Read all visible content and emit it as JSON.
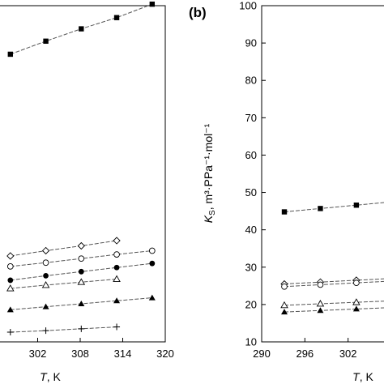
{
  "chart_data": [
    {
      "panel": "a",
      "type": "line",
      "xlabel_var": "T",
      "xlabel_unit": ", K",
      "xlim": [
        296,
        320
      ],
      "x_ticks": [
        "302",
        "308",
        "314",
        "320"
      ],
      "series": [
        {
          "marker": "filled-square",
          "x": [
            298.15,
            303.15,
            308.15,
            313.15,
            318.15
          ],
          "y": [
            87,
            90.5,
            93.8,
            96.8,
            100.4
          ]
        },
        {
          "marker": "open-diamond",
          "x": [
            298.15,
            303.15,
            308.15,
            313.15
          ],
          "y": [
            33,
            34.4,
            35.7,
            37.1
          ]
        },
        {
          "marker": "open-circle",
          "x": [
            298.15,
            303.15,
            308.15,
            313.15,
            318.15
          ],
          "y": [
            30.2,
            31.2,
            32.3,
            33.4,
            34.4
          ]
        },
        {
          "marker": "filled-circle",
          "x": [
            298.15,
            303.15,
            308.15,
            313.15,
            318.15
          ],
          "y": [
            26.5,
            27.7,
            28.8,
            29.9,
            31.0
          ]
        },
        {
          "marker": "open-triangle",
          "x": [
            298.15,
            303.15,
            308.15,
            313.15
          ],
          "y": [
            24.3,
            25.2,
            26.0,
            26.8
          ]
        },
        {
          "marker": "filled-triangle",
          "x": [
            298.15,
            303.15,
            308.15,
            313.15,
            318.15
          ],
          "y": [
            18.6,
            19.4,
            20.2,
            21.0,
            21.8
          ]
        },
        {
          "marker": "plus",
          "x": [
            298.15,
            303.15,
            308.15,
            313.15
          ],
          "y": [
            12.6,
            13.0,
            13.5,
            14.0
          ]
        }
      ]
    },
    {
      "panel": "b",
      "type": "line",
      "tag": "(b)",
      "xlabel_var": "T",
      "xlabel_unit": ", K",
      "ylabel_var": "K",
      "ylabel_sub": "S",
      "ylabel_rest": ", m³·PPa⁻¹·mol⁻¹",
      "xlim": [
        290,
        308
      ],
      "ylim": [
        10,
        100
      ],
      "x_ticks": [
        "290",
        "296",
        "302",
        "3"
      ],
      "y_ticks": [
        "10",
        "20",
        "30",
        "40",
        "50",
        "60",
        "70",
        "80",
        "90",
        "100"
      ],
      "series": [
        {
          "marker": "filled-square",
          "x": [
            293.15,
            298.15,
            303.15,
            308.15
          ],
          "y": [
            44.8,
            45.7,
            46.6,
            47.5
          ]
        },
        {
          "marker": "open-diamond",
          "x": [
            293.15,
            298.15,
            303.15,
            308.15
          ],
          "y": [
            25.5,
            26.0,
            26.5,
            27.0
          ]
        },
        {
          "marker": "open-circle",
          "x": [
            293.15,
            298.15,
            303.15,
            308.15
          ],
          "y": [
            24.8,
            25.3,
            25.8,
            26.3
          ]
        },
        {
          "marker": "open-triangle",
          "x": [
            293.15,
            298.15,
            303.15,
            308.15
          ],
          "y": [
            19.8,
            20.2,
            20.6,
            21.0
          ]
        },
        {
          "marker": "filled-triangle",
          "x": [
            293.15,
            298.15,
            303.15,
            308.15
          ],
          "y": [
            18.0,
            18.4,
            18.8,
            19.2
          ]
        }
      ]
    }
  ]
}
